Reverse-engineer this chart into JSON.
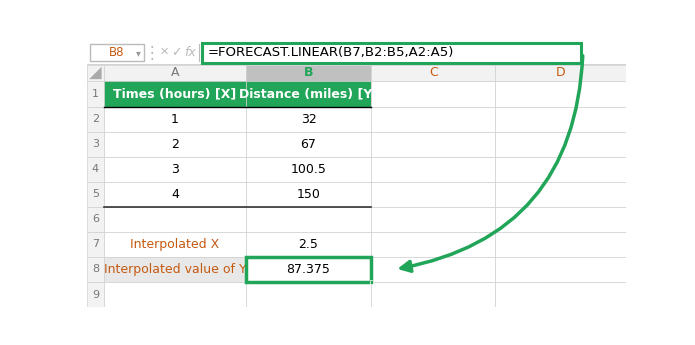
{
  "formula_bar_cell": "B8",
  "formula_bar_formula": "=FORECAST.LINEAR(B7,B2:B5,A2:A5)",
  "header_row": [
    "Times (hours) [X]",
    "Distance (miles) [Y]"
  ],
  "data_rows": [
    [
      "1",
      "32"
    ],
    [
      "2",
      "67"
    ],
    [
      "3",
      "100.5"
    ],
    [
      "4",
      "150"
    ],
    [
      "",
      ""
    ],
    [
      "Interpolated X",
      "2.5"
    ],
    [
      "Interpolated value of Y",
      "87.375"
    ]
  ],
  "green_header_bg": "#21A558",
  "green_header_text": "#FFFFFF",
  "green_border_color": "#21A558",
  "orange_text_color": "#C55A11",
  "arrow_color": "#21A558",
  "grid_color": "#D0D0D0",
  "dark_border_color": "#333333",
  "background_white": "#FFFFFF",
  "col_header_bg": "#F2F2F2",
  "col_b_header_bg": "#C0C0C0",
  "row_header_bg": "#F2F2F2",
  "row8_a_bg": "#E8E8E8"
}
